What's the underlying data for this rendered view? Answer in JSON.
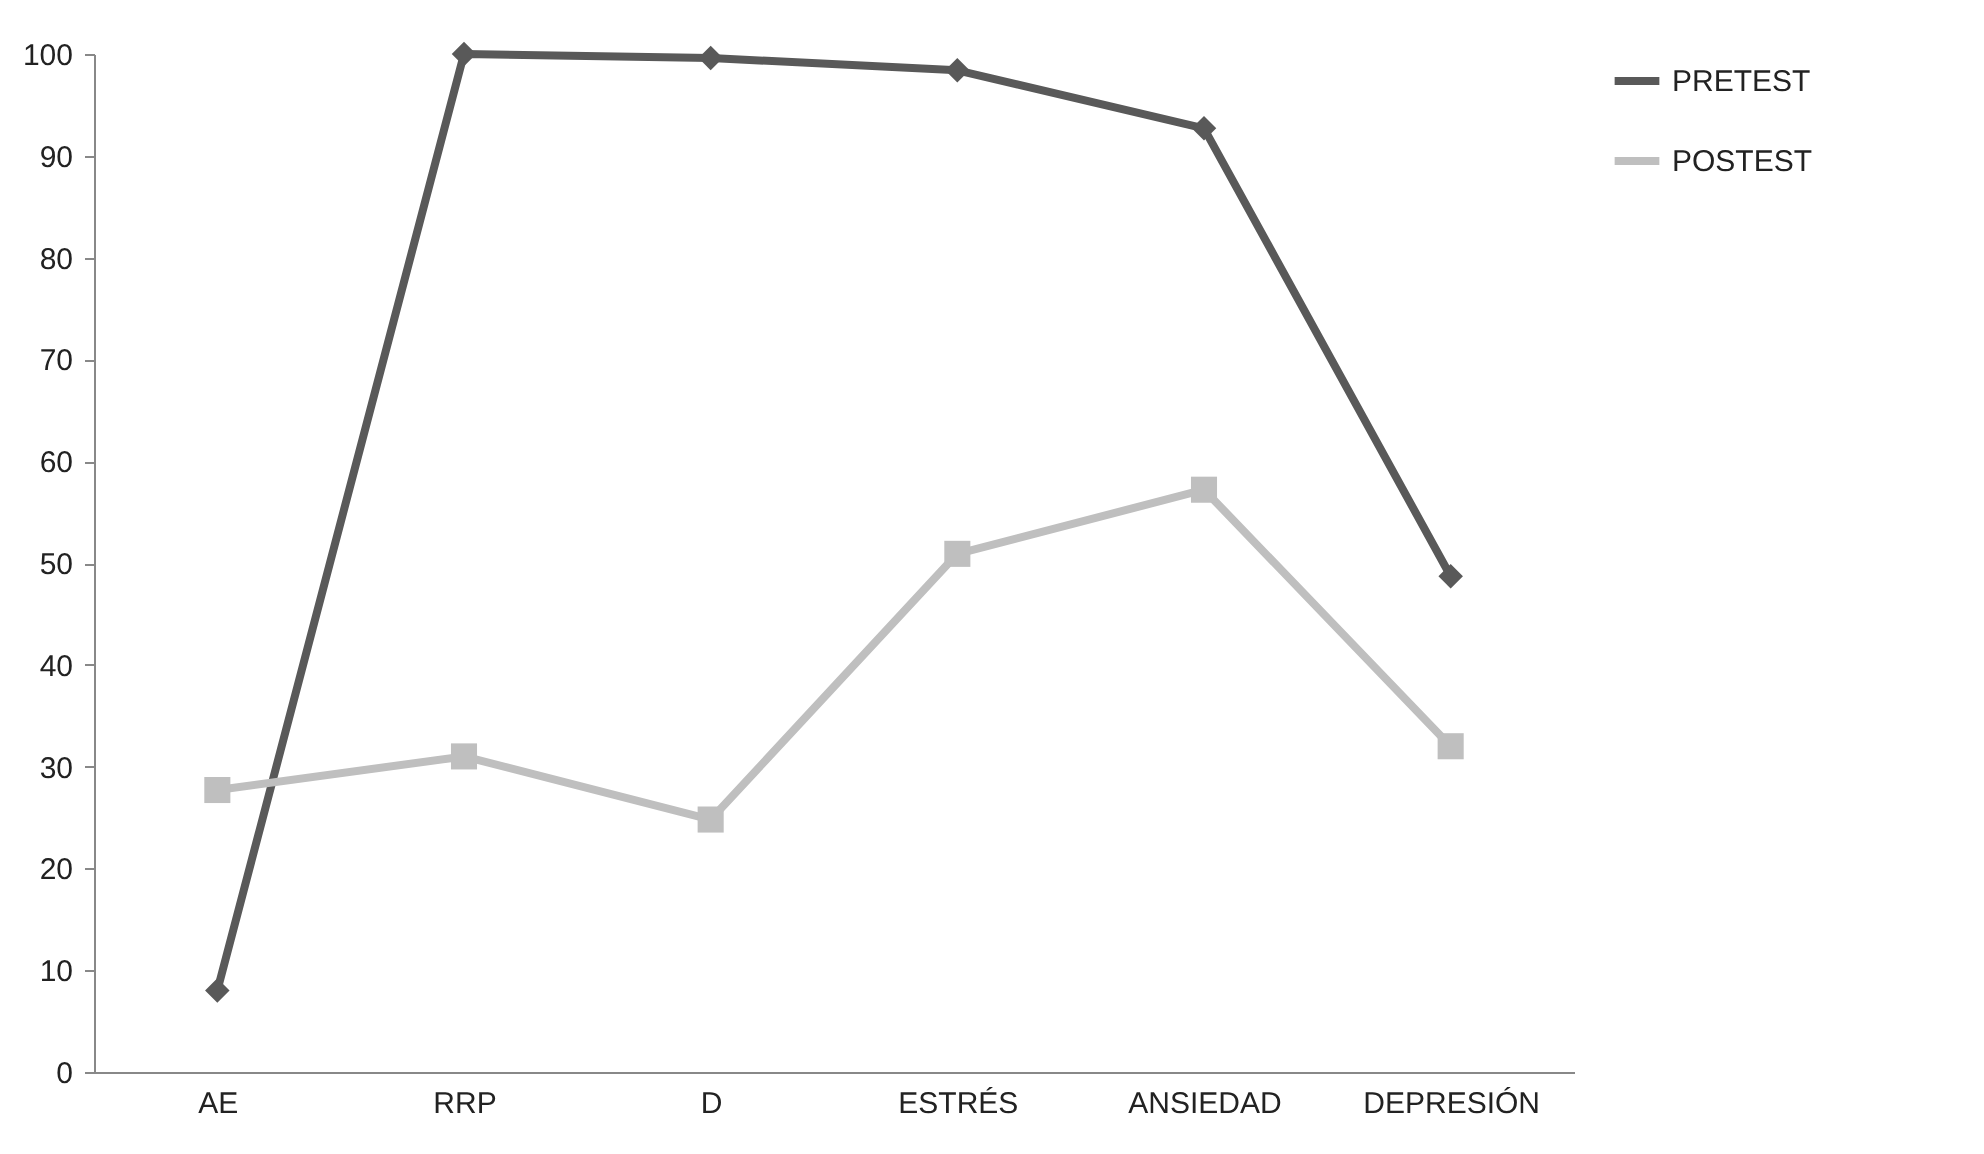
{
  "chart_data": {
    "type": "line",
    "categories": [
      "AE",
      "RRP",
      "D",
      "ESTRÉS",
      "ANSIEDAD",
      "DEPRESIÓN"
    ],
    "series": [
      {
        "name": "PRETEST",
        "color": "#595959",
        "marker": "diamond",
        "values": [
          8,
          100,
          99.6,
          98.4,
          92.7,
          48.7
        ]
      },
      {
        "name": "POSTEST",
        "color": "#bfbfbf",
        "marker": "square",
        "values": [
          27.7,
          31,
          24.8,
          50.9,
          57.2,
          32
        ]
      }
    ],
    "ylim": [
      0,
      100
    ],
    "yticks": [
      0,
      10,
      20,
      30,
      40,
      50,
      60,
      70,
      80,
      90,
      100
    ],
    "grid": false,
    "legend": "right",
    "line_style": "solid"
  }
}
